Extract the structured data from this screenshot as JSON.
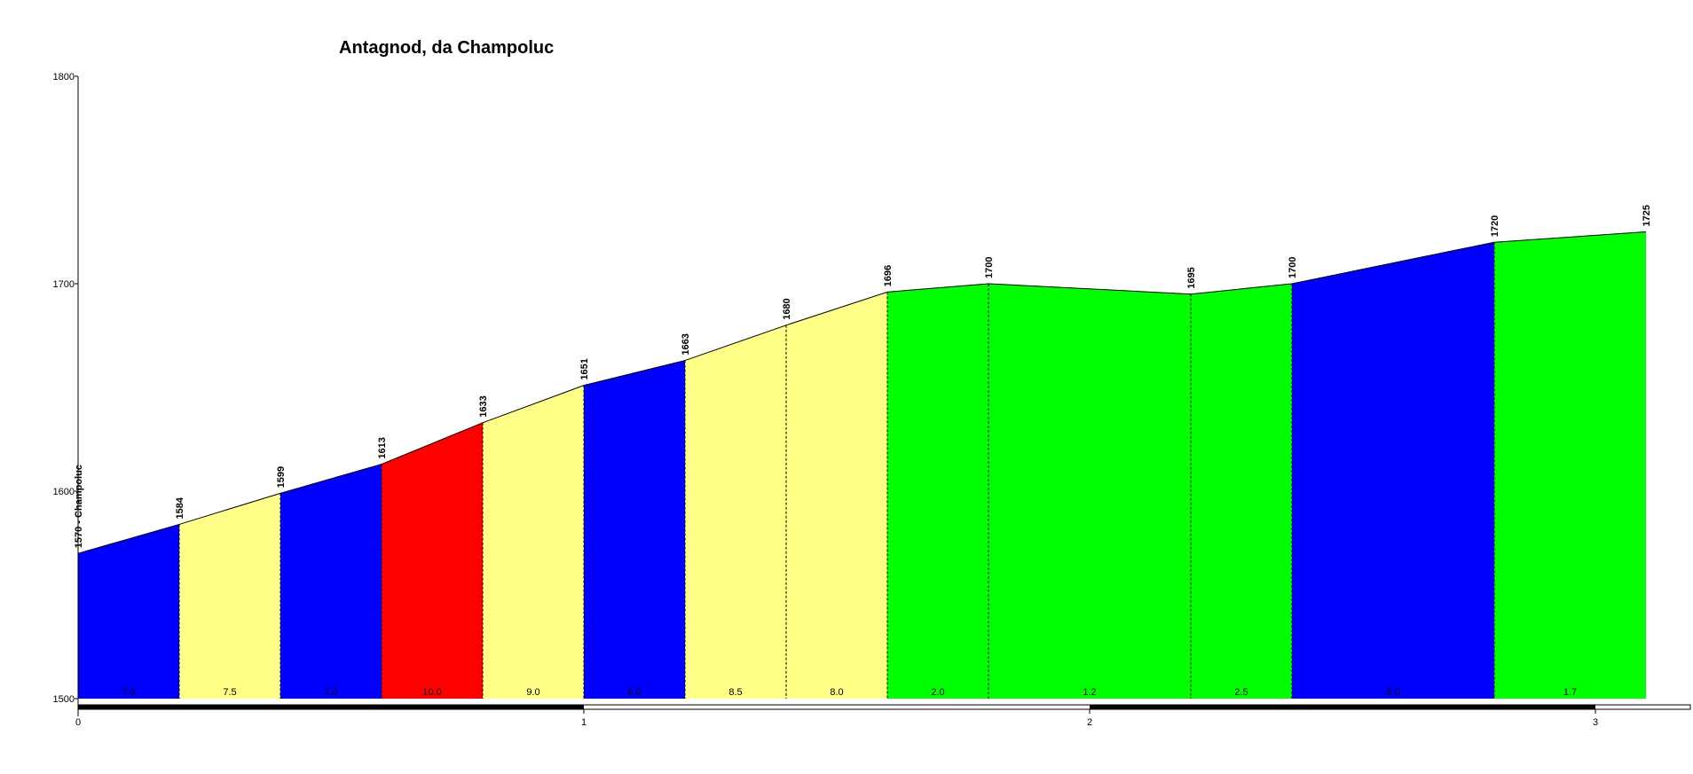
{
  "chart_data": {
    "type": "area",
    "title": "Antagnod, da Champoluc",
    "xlabel": "",
    "ylabel": "",
    "xlim": [
      0,
      3.1
    ],
    "ylim": [
      1500,
      1800
    ],
    "y_ticks": [
      1500,
      1600,
      1700,
      1800
    ],
    "x_ticks": [
      0,
      1,
      2,
      3
    ],
    "grid": false,
    "legend": "none",
    "colors": {
      "blue": "#0000ff",
      "yellow": "#ffff88",
      "red": "#ff0000",
      "green": "#00ff00",
      "outline": "#000000"
    },
    "points": [
      {
        "x": 0.0,
        "y": 1570,
        "label": "1570 - Champoluc"
      },
      {
        "x": 0.2,
        "y": 1584,
        "label": "1584"
      },
      {
        "x": 0.4,
        "y": 1599,
        "label": "1599"
      },
      {
        "x": 0.6,
        "y": 1613,
        "label": "1613"
      },
      {
        "x": 0.8,
        "y": 1633,
        "label": "1633"
      },
      {
        "x": 1.0,
        "y": 1651,
        "label": "1651"
      },
      {
        "x": 1.2,
        "y": 1663,
        "label": "1663"
      },
      {
        "x": 1.4,
        "y": 1680,
        "label": "1680"
      },
      {
        "x": 1.6,
        "y": 1696,
        "label": "1696"
      },
      {
        "x": 1.8,
        "y": 1700,
        "label": "1700"
      },
      {
        "x": 2.2,
        "y": 1695,
        "label": "1695"
      },
      {
        "x": 2.4,
        "y": 1700,
        "label": "1700"
      },
      {
        "x": 2.8,
        "y": 1720,
        "label": "1720"
      },
      {
        "x": 3.1,
        "y": 1725,
        "label": "1725"
      }
    ],
    "segments": [
      {
        "gradient": "7.0",
        "color": "blue"
      },
      {
        "gradient": "7.5",
        "color": "yellow"
      },
      {
        "gradient": "7.0",
        "color": "blue"
      },
      {
        "gradient": "10.0",
        "color": "red"
      },
      {
        "gradient": "9.0",
        "color": "yellow"
      },
      {
        "gradient": "6.0",
        "color": "blue"
      },
      {
        "gradient": "8.5",
        "color": "yellow"
      },
      {
        "gradient": "8.0",
        "color": "yellow"
      },
      {
        "gradient": "2.0",
        "color": "green"
      },
      {
        "gradient": "1.2",
        "color": "green"
      },
      {
        "gradient": "2.5",
        "color": "green"
      },
      {
        "gradient": "5.0",
        "color": "blue"
      },
      {
        "gradient": "1.7",
        "color": "green"
      }
    ]
  }
}
